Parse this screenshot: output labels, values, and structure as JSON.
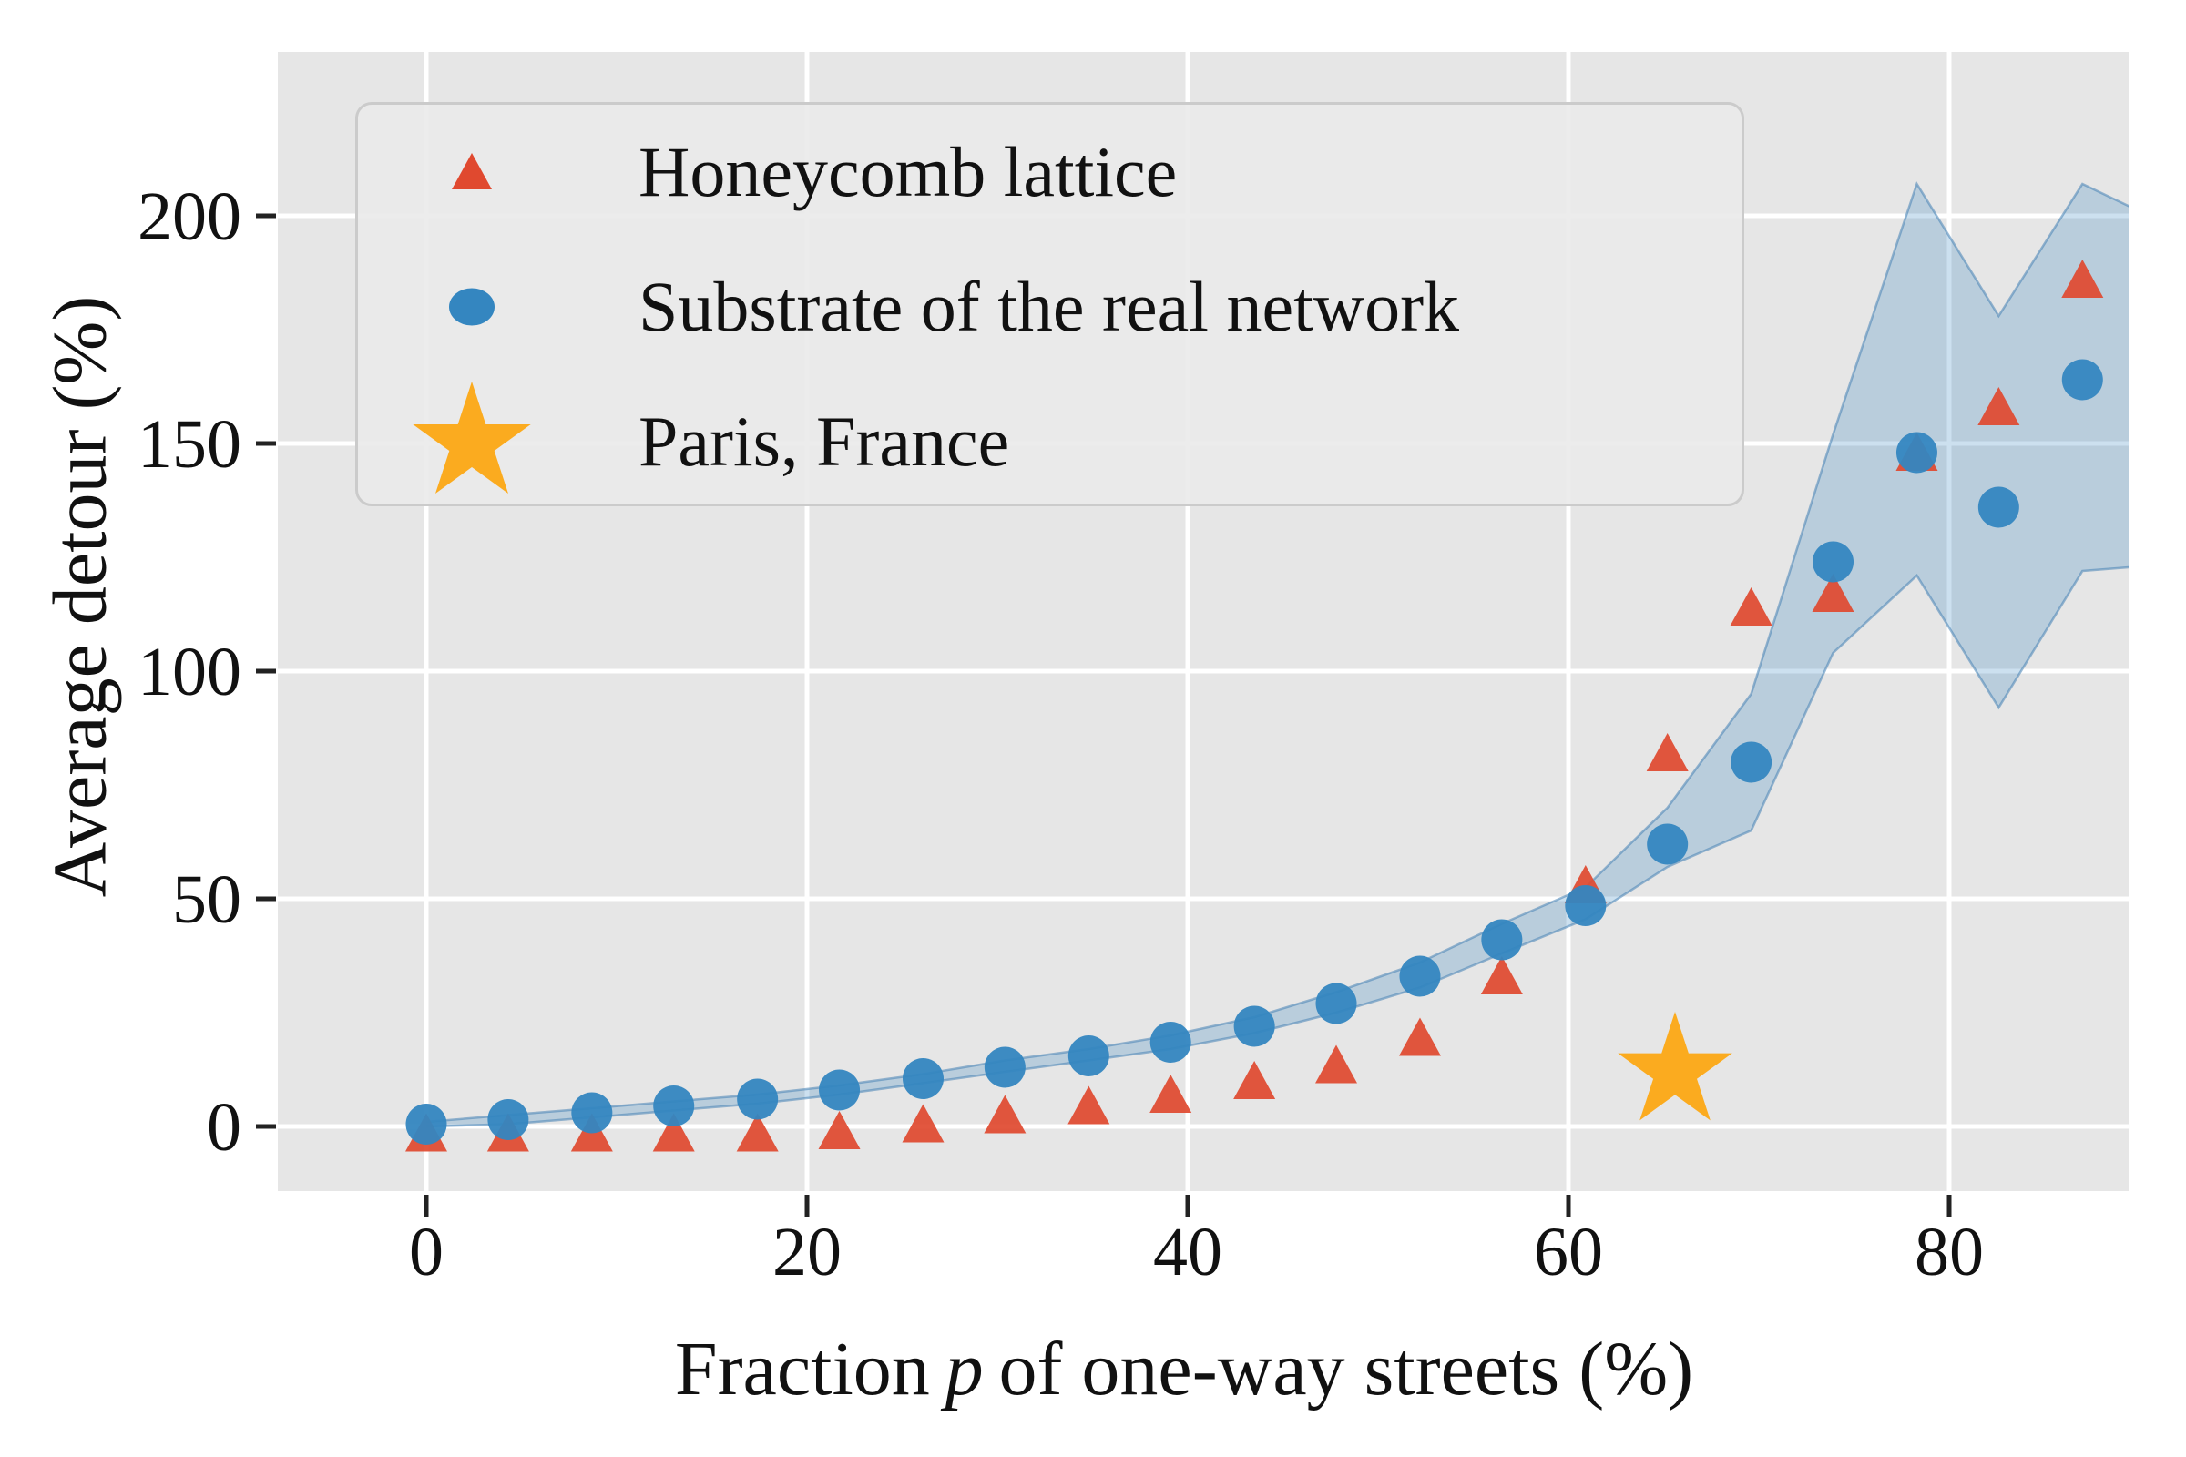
{
  "axes": {
    "xlabel_pre": "Fraction",
    "xlabel_var": "p",
    "xlabel_post": "of one-way streets (%)",
    "ylabel": "Average detour (%)",
    "x_ticks": [
      0,
      20,
      40,
      60,
      80
    ],
    "y_ticks": [
      0,
      50,
      100,
      150,
      200
    ]
  },
  "legend": {
    "items": [
      {
        "label": "Honeycomb lattice",
        "marker": "triangle-icon",
        "color": "#e0492f"
      },
      {
        "label": "Substrate of the real network",
        "marker": "circle-icon",
        "color": "#3486c0"
      },
      {
        "label": "Paris, France",
        "marker": "star-icon",
        "color": "#fbab1f"
      }
    ]
  },
  "colors": {
    "plot_background": "#e6e6e6",
    "gridline": "#ffffff",
    "honeycomb_red": "#e0492f",
    "substrate_blue": "#3486c0",
    "paris_orange": "#fbab1f",
    "band_fill": "rgba(52,132,191,0.25)",
    "band_edge": "rgba(70,130,180,0.55)",
    "tick": "#222222"
  },
  "chart_data": {
    "type": "scatter",
    "title": "",
    "xlabel": "Fraction p of one-way streets (%)",
    "ylabel": "Average detour (%)",
    "xlim": [
      -7.8,
      89.4
    ],
    "ylim": [
      -14,
      236
    ],
    "grid": true,
    "legend_position": "upper left",
    "x": [
      0,
      4.3,
      8.7,
      13,
      17.4,
      21.7,
      26.1,
      30.4,
      34.8,
      39.1,
      43.5,
      47.8,
      52.2,
      56.5,
      60.9,
      65.2,
      69.6,
      73.9,
      78.3,
      82.6,
      87
    ],
    "series": [
      {
        "name": "Honeycomb lattice",
        "marker": "triangle",
        "values": [
          -1.5,
          -1.5,
          -1.5,
          -1.5,
          -1.5,
          -1,
          0.5,
          2.5,
          4.5,
          7,
          10,
          13.5,
          19.5,
          33,
          53,
          82,
          114,
          117,
          148,
          158,
          186
        ]
      },
      {
        "name": "Substrate of the real network",
        "marker": "circle",
        "values": [
          0.5,
          1.5,
          3,
          4.5,
          6,
          8,
          10.5,
          13,
          15.5,
          18.5,
          22,
          27,
          33,
          41,
          48.5,
          62,
          80,
          124,
          148,
          136,
          164
        ],
        "band_x": [
          0,
          4.3,
          8.7,
          13,
          17.4,
          21.7,
          26.1,
          30.4,
          34.8,
          39.1,
          43.5,
          47.8,
          52.2,
          56.5,
          60.9,
          65.2,
          69.6,
          73.9,
          78.3,
          82.6,
          87,
          90
        ],
        "band_lower": [
          0,
          0.5,
          2,
          3.5,
          5,
          7,
          9.5,
          12,
          14.5,
          17,
          20.5,
          25,
          30.5,
          38,
          45.5,
          57,
          65,
          104,
          121,
          92,
          122,
          123
        ],
        "band_upper": [
          1,
          2.5,
          4,
          5.5,
          7,
          9,
          11.5,
          14.5,
          17,
          20,
          24,
          29.5,
          36,
          44.5,
          52.5,
          70,
          95,
          152,
          207,
          178,
          207,
          201
        ]
      },
      {
        "name": "Paris, France",
        "marker": "star",
        "point": {
          "x": 65.6,
          "y": 12
        }
      }
    ]
  }
}
